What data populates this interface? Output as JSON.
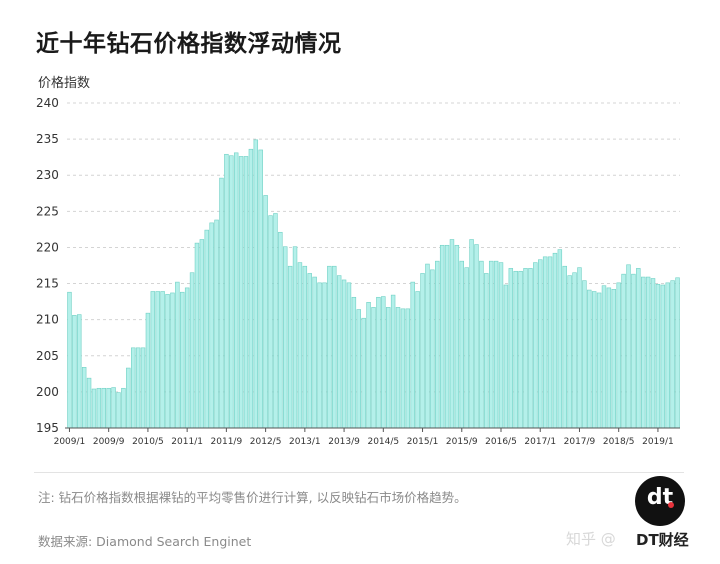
{
  "page": {
    "title": "近十年钻石价格指数浮动情况",
    "note": "注: 钻石价格指数根据裸钻的平均零售价进行计算, 以反映钻石市场价格趋势。",
    "source": "数据来源: Diamond Search Enginet",
    "watermark_zhihu": "知乎 @",
    "logo_text": "dt",
    "brand_text": "DT财经",
    "bar_color": "#b4f0ea",
    "bar_stroke": "#6fd0c4",
    "accent_red": "#e8333c"
  },
  "chart_data": {
    "type": "bar",
    "title": "近十年钻石价格指数浮动情况",
    "ylabel": "价格指数",
    "xlabel": "",
    "ylim": [
      195,
      240
    ],
    "yticks": [
      195,
      200,
      205,
      210,
      215,
      220,
      225,
      230,
      235,
      240
    ],
    "grid": true,
    "xtick_labels": [
      "2009/1",
      "2009/9",
      "2010/5",
      "2011/1",
      "2011/9",
      "2012/5",
      "2013/1",
      "2013/9",
      "2014/5",
      "2015/1",
      "2015/9",
      "2016/5",
      "2017/1",
      "2017/9",
      "2018/5",
      "2019/1"
    ],
    "xtick_every": 8,
    "values": [
      213.8,
      210.6,
      210.7,
      203.4,
      201.9,
      200.4,
      200.5,
      200.5,
      200.5,
      200.6,
      199.9,
      200.5,
      203.3,
      206.1,
      206.1,
      206.1,
      210.9,
      213.9,
      213.9,
      213.9,
      213.5,
      213.7,
      215.2,
      213.8,
      214.4,
      216.5,
      220.6,
      221.1,
      222.4,
      223.4,
      223.8,
      229.6,
      232.9,
      232.7,
      233.1,
      232.6,
      232.6,
      233.6,
      234.9,
      233.5,
      227.2,
      224.4,
      224.7,
      222.1,
      220.1,
      217.4,
      220.1,
      217.9,
      217.4,
      216.4,
      215.9,
      215.1,
      215.1,
      217.4,
      217.4,
      216.1,
      215.5,
      215.1,
      213.1,
      211.4,
      210.2,
      212.4,
      211.7,
      213.1,
      213.2,
      211.7,
      213.4,
      211.7,
      211.5,
      211.5,
      215.2,
      213.9,
      216.4,
      217.7,
      216.9,
      218.1,
      220.3,
      220.3,
      221.1,
      220.3,
      218.1,
      217.2,
      221.1,
      220.4,
      218.1,
      216.4,
      218.1,
      218.1,
      217.9,
      214.8,
      217.1,
      216.7,
      216.7,
      217.1,
      217.1,
      217.9,
      218.3,
      218.7,
      218.7,
      219.2,
      219.7,
      217.4,
      216.1,
      216.5,
      217.2,
      215.4,
      214.1,
      213.9,
      213.7,
      214.7,
      214.4,
      214.2,
      215.1,
      216.3,
      217.6,
      216.3,
      217.1,
      215.9,
      215.9,
      215.7,
      214.9,
      214.8,
      215.1,
      215.4,
      215.8
    ]
  }
}
